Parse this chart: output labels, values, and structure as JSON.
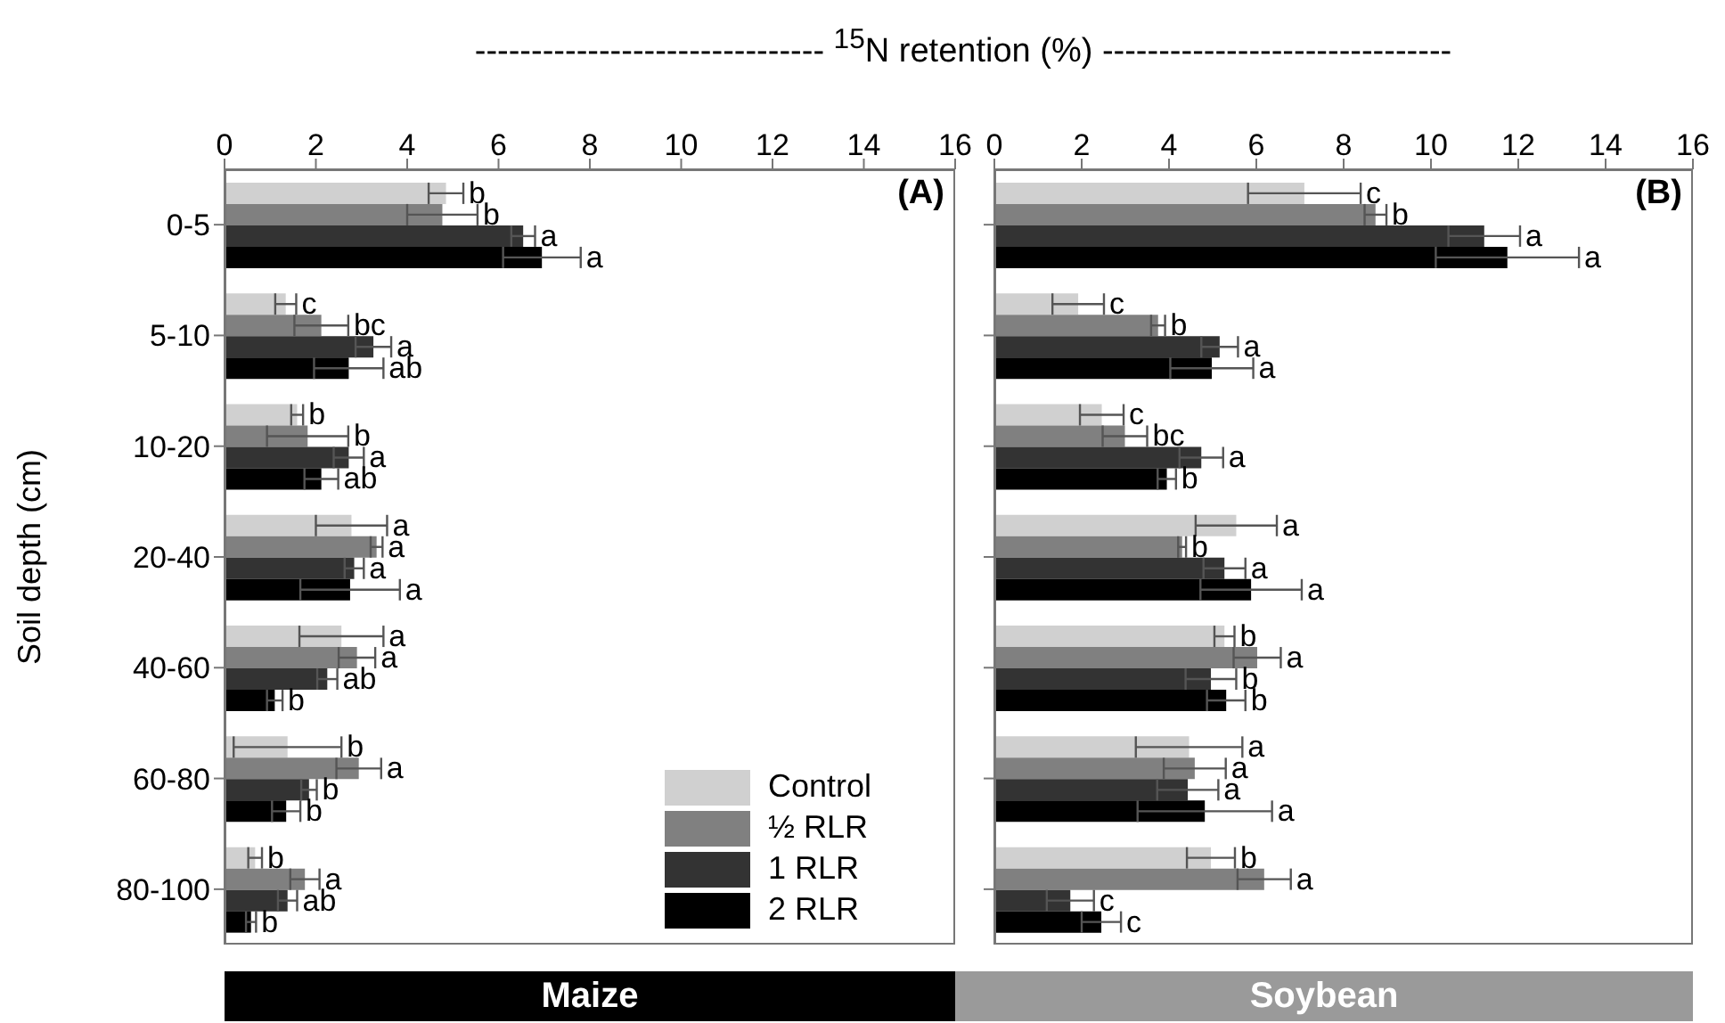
{
  "chart_data": [
    {
      "type": "bar",
      "orientation": "horizontal",
      "title": "(A)",
      "subtitle": "Maize",
      "xlabel": "------------------------------- $^{15}$N retention (%) -------------------------------",
      "ylabel": "Soil depth (cm)",
      "categories": [
        "0-5",
        "5-10",
        "10-20",
        "20-40",
        "40-60",
        "60-80",
        "80-100"
      ],
      "xlim": [
        0,
        16
      ],
      "xticks": [
        0,
        2,
        4,
        6,
        8,
        10,
        12,
        14,
        16
      ],
      "legend": "bottom right",
      "series": [
        {
          "name": "Control",
          "color": "#d0d0d0",
          "values": [
            4.85,
            1.34,
            1.59,
            2.78,
            2.56,
            1.38,
            0.67
          ],
          "errors": [
            0.38,
            0.23,
            0.13,
            0.78,
            0.92,
            1.18,
            0.15
          ],
          "value_labels": [
            "b",
            "c",
            "b",
            "a",
            "a",
            "b",
            "b"
          ]
        },
        {
          "name": "½ RLR",
          "color": "#808080",
          "values": [
            4.77,
            2.12,
            1.82,
            3.33,
            2.9,
            2.94,
            1.76
          ],
          "errors": [
            0.77,
            0.59,
            0.89,
            0.13,
            0.4,
            0.49,
            0.32
          ],
          "value_labels": [
            "b",
            "bc",
            "b",
            "a",
            "a",
            "a",
            "a"
          ]
        },
        {
          "name": "1 RLR",
          "color": "#333333",
          "values": [
            6.54,
            3.26,
            2.72,
            2.84,
            2.25,
            1.85,
            1.38
          ],
          "errors": [
            0.26,
            0.39,
            0.33,
            0.21,
            0.22,
            0.17,
            0.21
          ],
          "value_labels": [
            "a",
            "a",
            "a",
            "a",
            "ab",
            "b",
            "ab"
          ]
        },
        {
          "name": "2 RLR",
          "color": "#000000",
          "values": [
            6.95,
            2.72,
            2.12,
            2.75,
            1.1,
            1.35,
            0.58
          ],
          "errors": [
            0.85,
            0.76,
            0.37,
            1.09,
            0.17,
            0.31,
            0.11
          ],
          "value_labels": [
            "a",
            "ab",
            "ab",
            "a",
            "b",
            "b",
            "b"
          ]
        }
      ]
    },
    {
      "type": "bar",
      "orientation": "horizontal",
      "title": "(B)",
      "subtitle": "Soybean",
      "categories": [
        null,
        null,
        null,
        null,
        null,
        null,
        null
      ],
      "xlim": [
        0,
        16
      ],
      "xticks": [
        0,
        2,
        4,
        6,
        8,
        10,
        12,
        14,
        16
      ],
      "series": [
        {
          "color": "#d0d0d0",
          "values": [
            7.1,
            1.92,
            2.46,
            5.54,
            5.27,
            4.46,
            4.96
          ],
          "errors": [
            1.29,
            0.59,
            0.5,
            0.93,
            0.23,
            1.22,
            0.55
          ],
          "value_labels": [
            "c",
            "c",
            "c",
            "a",
            "b",
            "a",
            "b"
          ]
        },
        {
          "color": "#808080",
          "values": [
            8.73,
            3.75,
            2.99,
            4.3,
            6.02,
            4.59,
            6.18
          ],
          "errors": [
            0.25,
            0.16,
            0.51,
            0.09,
            0.54,
            0.71,
            0.61
          ],
          "value_labels": [
            "b",
            "b",
            "bc",
            "b",
            "a",
            "a",
            "a"
          ]
        },
        {
          "color": "#333333",
          "values": [
            11.22,
            5.16,
            4.74,
            5.27,
            4.96,
            4.43,
            1.74
          ],
          "errors": [
            0.82,
            0.42,
            0.5,
            0.48,
            0.58,
            0.7,
            0.54
          ],
          "value_labels": [
            "a",
            "a",
            "a",
            "a",
            "b",
            "a",
            "c"
          ]
        },
        {
          "color": "#000000",
          "values": [
            11.75,
            4.98,
            3.95,
            5.88,
            5.31,
            4.82,
            2.45
          ],
          "errors": [
            1.64,
            0.95,
            0.21,
            1.16,
            0.44,
            1.54,
            0.45
          ],
          "value_labels": [
            "a",
            "a",
            "b",
            "a",
            "b",
            "a",
            "c"
          ]
        }
      ]
    }
  ]
}
